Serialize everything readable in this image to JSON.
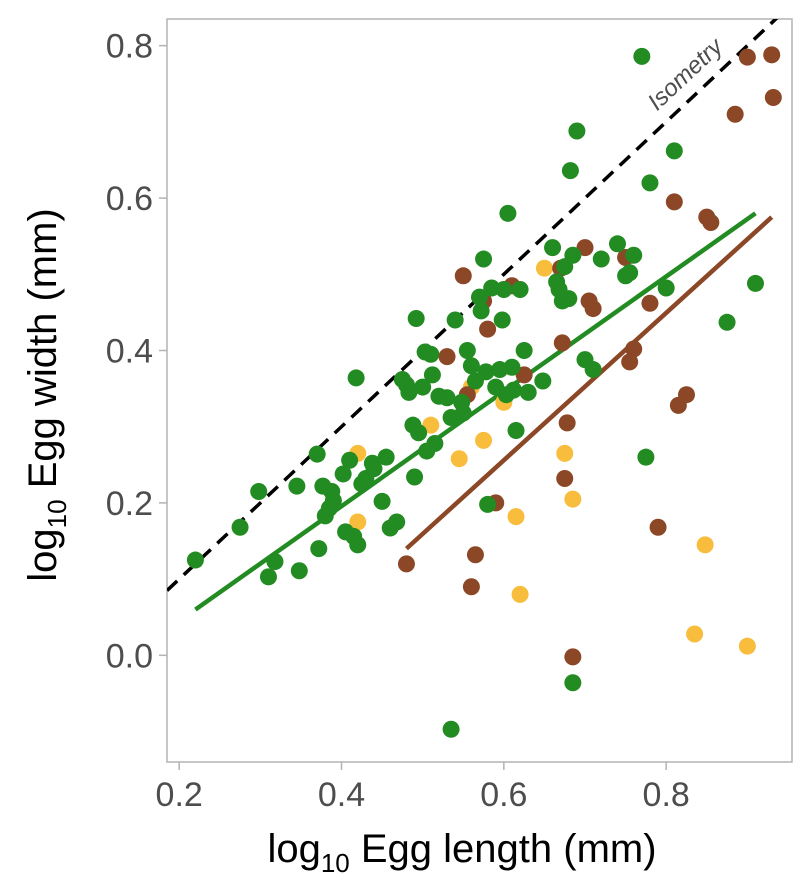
{
  "chart_data": {
    "type": "scatter",
    "xlabel": "log10 Egg length (mm)",
    "ylabel": "log10 Egg width (mm)",
    "xlim": [
      0.185,
      0.955
    ],
    "ylim": [
      -0.14,
      0.835
    ],
    "x_ticks": [
      "0.2",
      "0.4",
      "0.6",
      "0.8"
    ],
    "x_tick_values": [
      0.2,
      0.4,
      0.6,
      0.8
    ],
    "y_ticks": [
      "0.0",
      "0.2",
      "0.4",
      "0.6",
      "0.8"
    ],
    "y_tick_values": [
      0.0,
      0.2,
      0.4,
      0.6,
      0.8
    ],
    "grid": false,
    "legend": "none",
    "annotations": [
      {
        "text": "Isometry",
        "x": 0.83,
        "y": 0.755
      }
    ],
    "reference_line": {
      "label": "Isometry",
      "style": "dashed",
      "color": "#000000",
      "x": [
        0.185,
        0.955
      ],
      "y": [
        0.085,
        0.855
      ]
    },
    "series": [
      {
        "color": "#228b22",
        "points": [
          [
            0.22,
            0.125
          ],
          [
            0.275,
            0.168
          ],
          [
            0.298,
            0.215
          ],
          [
            0.31,
            0.103
          ],
          [
            0.318,
            0.123
          ],
          [
            0.345,
            0.222
          ],
          [
            0.348,
            0.111
          ],
          [
            0.37,
            0.264
          ],
          [
            0.372,
            0.14
          ],
          [
            0.377,
            0.222
          ],
          [
            0.38,
            0.183
          ],
          [
            0.385,
            0.193
          ],
          [
            0.388,
            0.215
          ],
          [
            0.39,
            0.203
          ],
          [
            0.402,
            0.238
          ],
          [
            0.405,
            0.162
          ],
          [
            0.41,
            0.256
          ],
          [
            0.415,
            0.156
          ],
          [
            0.418,
            0.364
          ],
          [
            0.42,
            0.145
          ],
          [
            0.425,
            0.225
          ],
          [
            0.43,
            0.232
          ],
          [
            0.438,
            0.252
          ],
          [
            0.44,
            0.245
          ],
          [
            0.45,
            0.202
          ],
          [
            0.455,
            0.26
          ],
          [
            0.46,
            0.167
          ],
          [
            0.468,
            0.175
          ],
          [
            0.475,
            0.362
          ],
          [
            0.48,
            0.355
          ],
          [
            0.483,
            0.345
          ],
          [
            0.488,
            0.302
          ],
          [
            0.49,
            0.234
          ],
          [
            0.492,
            0.442
          ],
          [
            0.495,
            0.292
          ],
          [
            0.5,
            0.352
          ],
          [
            0.503,
            0.398
          ],
          [
            0.505,
            0.268
          ],
          [
            0.51,
            0.395
          ],
          [
            0.512,
            0.368
          ],
          [
            0.515,
            0.278
          ],
          [
            0.52,
            0.34
          ],
          [
            0.53,
            0.338
          ],
          [
            0.535,
            0.312
          ],
          [
            0.54,
            0.44
          ],
          [
            0.548,
            0.332
          ],
          [
            0.55,
            0.318
          ],
          [
            0.555,
            0.4
          ],
          [
            0.56,
            0.38
          ],
          [
            0.565,
            0.36
          ],
          [
            0.57,
            0.47
          ],
          [
            0.572,
            0.452
          ],
          [
            0.575,
            0.52
          ],
          [
            0.578,
            0.372
          ],
          [
            0.58,
            0.198
          ],
          [
            0.585,
            0.482
          ],
          [
            0.59,
            0.352
          ],
          [
            0.595,
            0.375
          ],
          [
            0.598,
            0.44
          ],
          [
            0.6,
            0.48
          ],
          [
            0.603,
            0.342
          ],
          [
            0.605,
            0.58
          ],
          [
            0.61,
            0.378
          ],
          [
            0.612,
            0.348
          ],
          [
            0.615,
            0.295
          ],
          [
            0.62,
            0.48
          ],
          [
            0.625,
            0.4
          ],
          [
            0.63,
            0.345
          ],
          [
            0.648,
            0.36
          ],
          [
            0.66,
            0.535
          ],
          [
            0.665,
            0.49
          ],
          [
            0.668,
            0.48
          ],
          [
            0.672,
            0.465
          ],
          [
            0.675,
            0.51
          ],
          [
            0.68,
            0.468
          ],
          [
            0.682,
            0.636
          ],
          [
            0.685,
            0.525
          ],
          [
            0.69,
            0.688
          ],
          [
            0.7,
            0.388
          ],
          [
            0.71,
            0.375
          ],
          [
            0.72,
            0.52
          ],
          [
            0.74,
            0.54
          ],
          [
            0.75,
            0.498
          ],
          [
            0.755,
            0.502
          ],
          [
            0.76,
            0.525
          ],
          [
            0.77,
            0.786
          ],
          [
            0.775,
            0.26
          ],
          [
            0.78,
            0.62
          ],
          [
            0.8,
            0.482
          ],
          [
            0.81,
            0.662
          ],
          [
            0.875,
            0.437
          ],
          [
            0.91,
            0.488
          ],
          [
            0.535,
            -0.097
          ],
          [
            0.685,
            -0.036
          ]
        ]
      },
      {
        "color": "#8b4726",
        "points": [
          [
            0.48,
            0.12
          ],
          [
            0.53,
            0.392
          ],
          [
            0.55,
            0.498
          ],
          [
            0.555,
            0.342
          ],
          [
            0.56,
            0.09
          ],
          [
            0.565,
            0.132
          ],
          [
            0.575,
            0.465
          ],
          [
            0.58,
            0.428
          ],
          [
            0.59,
            0.2
          ],
          [
            0.61,
            0.485
          ],
          [
            0.625,
            0.368
          ],
          [
            0.67,
            0.508
          ],
          [
            0.672,
            0.41
          ],
          [
            0.675,
            0.232
          ],
          [
            0.678,
            0.305
          ],
          [
            0.685,
            -0.002
          ],
          [
            0.7,
            0.535
          ],
          [
            0.705,
            0.465
          ],
          [
            0.71,
            0.455
          ],
          [
            0.75,
            0.522
          ],
          [
            0.755,
            0.385
          ],
          [
            0.76,
            0.402
          ],
          [
            0.78,
            0.462
          ],
          [
            0.79,
            0.168
          ],
          [
            0.81,
            0.595
          ],
          [
            0.815,
            0.328
          ],
          [
            0.825,
            0.342
          ],
          [
            0.85,
            0.575
          ],
          [
            0.855,
            0.568
          ],
          [
            0.885,
            0.71
          ],
          [
            0.9,
            0.785
          ],
          [
            0.93,
            0.788
          ],
          [
            0.932,
            0.732
          ]
        ]
      },
      {
        "color": "#f8bd3c",
        "points": [
          [
            0.42,
            0.265
          ],
          [
            0.42,
            0.175
          ],
          [
            0.51,
            0.302
          ],
          [
            0.545,
            0.258
          ],
          [
            0.56,
            0.352
          ],
          [
            0.575,
            0.282
          ],
          [
            0.6,
            0.332
          ],
          [
            0.615,
            0.182
          ],
          [
            0.62,
            0.08
          ],
          [
            0.65,
            0.508
          ],
          [
            0.675,
            0.265
          ],
          [
            0.685,
            0.205
          ],
          [
            0.835,
            0.028
          ],
          [
            0.848,
            0.145
          ],
          [
            0.9,
            0.012
          ]
        ]
      }
    ],
    "fit_lines": [
      {
        "color": "#228b22",
        "x": [
          0.22,
          0.91
        ],
        "y": [
          0.06,
          0.58
        ]
      },
      {
        "color": "#8b4726",
        "x": [
          0.48,
          0.93
        ],
        "y": [
          0.14,
          0.575
        ]
      }
    ]
  }
}
